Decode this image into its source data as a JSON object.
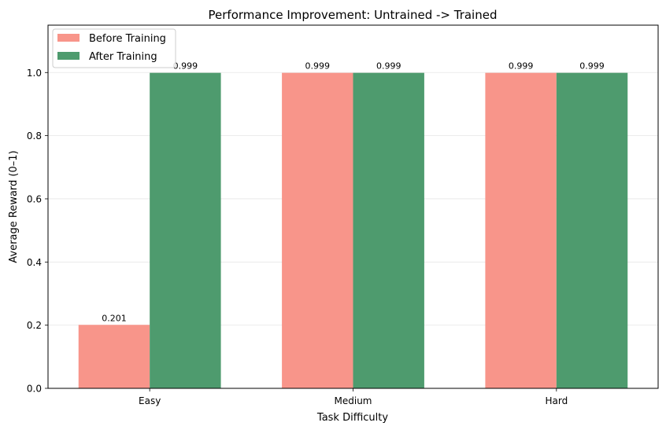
{
  "chart_data": {
    "type": "bar",
    "title": "Performance Improvement: Untrained -> Trained",
    "xlabel": "Task Difficulty",
    "ylabel": "Average Reward (0–1)",
    "categories": [
      "Easy",
      "Medium",
      "Hard"
    ],
    "series": [
      {
        "name": "Before Training",
        "values": [
          0.201,
          0.999,
          0.999
        ],
        "labels": [
          "0.201",
          "0.999",
          "0.999"
        ],
        "color": "#f8958a"
      },
      {
        "name": "After Training",
        "values": [
          0.999,
          0.999,
          0.999
        ],
        "labels": [
          "0.999",
          "0.999",
          "0.999"
        ],
        "color": "#4e9b6e"
      }
    ],
    "ylim": [
      0,
      1.15
    ],
    "yticks": [
      0.0,
      0.2,
      0.4,
      0.6,
      0.8,
      1.0
    ],
    "ytick_labels": [
      "0.0",
      "0.2",
      "0.4",
      "0.6",
      "0.8",
      "1.0"
    ],
    "grid": "y",
    "legend_position": "top-left"
  }
}
